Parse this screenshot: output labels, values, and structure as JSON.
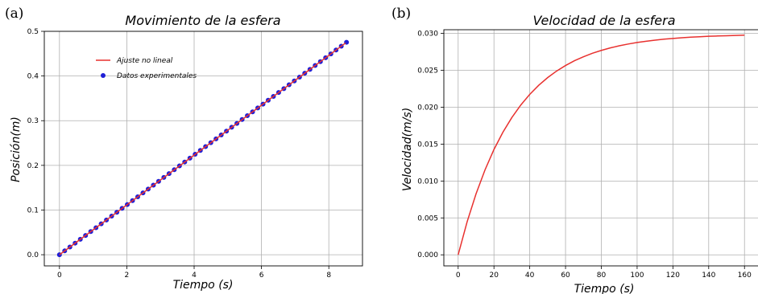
{
  "panels": [
    {
      "panel_letter": "(a)",
      "legend": {
        "fit_label": "Ajuste no lineal",
        "data_label": "Datos experimentales"
      }
    },
    {
      "panel_letter": "(b)"
    }
  ],
  "colors": {
    "fit_line": "#e8312f",
    "data_points": "#1f1fd6",
    "grid": "#b0b0b0"
  },
  "chart_data": [
    {
      "type": "scatter",
      "title": "Movimiento de la esfera",
      "xlabel": "Tiempo (s)",
      "ylabel": "Posición(m)",
      "xlim": [
        -0.45,
        9.0
      ],
      "ylim": [
        -0.025,
        0.5
      ],
      "xticks": [
        0,
        2,
        4,
        6,
        8
      ],
      "yticks": [
        0.0,
        0.1,
        0.2,
        0.3,
        0.4,
        0.5
      ],
      "xtick_labels": [
        "0",
        "2",
        "4",
        "6",
        "8"
      ],
      "ytick_labels": [
        "0.0",
        "0.1",
        "0.2",
        "0.3",
        "0.4",
        "0.5"
      ],
      "grid": true,
      "legend_position": "upper-left",
      "series": [
        {
          "name": "Ajuste no lineal",
          "kind": "line",
          "x": [
            0,
            8.5
          ],
          "y": [
            0.0,
            0.474
          ]
        },
        {
          "name": "Datos experimentales",
          "kind": "scatter",
          "x": [
            0.0,
            0.155,
            0.31,
            0.465,
            0.62,
            0.775,
            0.93,
            1.085,
            1.24,
            1.395,
            1.55,
            1.705,
            1.86,
            2.015,
            2.17,
            2.325,
            2.48,
            2.635,
            2.79,
            2.945,
            3.1,
            3.255,
            3.41,
            3.565,
            3.72,
            3.875,
            4.03,
            4.185,
            4.34,
            4.495,
            4.65,
            4.805,
            4.96,
            5.115,
            5.27,
            5.425,
            5.58,
            5.735,
            5.89,
            6.045,
            6.2,
            6.355,
            6.51,
            6.665,
            6.82,
            6.975,
            7.13,
            7.285,
            7.44,
            7.595,
            7.75,
            7.905,
            8.06,
            8.215,
            8.37,
            8.525
          ],
          "y": [
            0.0,
            0.0086,
            0.0173,
            0.0259,
            0.0346,
            0.0432,
            0.0519,
            0.0605,
            0.0692,
            0.0778,
            0.0864,
            0.0951,
            0.1037,
            0.1124,
            0.121,
            0.1297,
            0.1383,
            0.147,
            0.1556,
            0.1642,
            0.1729,
            0.1815,
            0.1902,
            0.1988,
            0.2075,
            0.2161,
            0.2248,
            0.2334,
            0.242,
            0.2507,
            0.2593,
            0.268,
            0.2766,
            0.2853,
            0.2939,
            0.3026,
            0.3112,
            0.3198,
            0.3285,
            0.3371,
            0.3458,
            0.3544,
            0.3631,
            0.3717,
            0.3804,
            0.389,
            0.3976,
            0.4063,
            0.4149,
            0.4236,
            0.4322,
            0.4409,
            0.4495,
            0.4582,
            0.4668,
            0.4754
          ]
        }
      ]
    },
    {
      "type": "line",
      "title": "Velocidad de la esfera",
      "xlabel": "Tiempo (s)",
      "ylabel": "Velocidad(m/s)",
      "xlim": [
        -8,
        168
      ],
      "ylim": [
        -0.0015,
        0.0305
      ],
      "xticks": [
        0,
        20,
        40,
        60,
        80,
        100,
        120,
        140,
        160
      ],
      "yticks": [
        0.0,
        0.005,
        0.01,
        0.015,
        0.02,
        0.025,
        0.03
      ],
      "xtick_labels": [
        "0",
        "20",
        "40",
        "60",
        "80",
        "100",
        "120",
        "140",
        "160"
      ],
      "ytick_labels": [
        "0.000",
        "0.005",
        "0.010",
        "0.015",
        "0.020",
        "0.025",
        "0.030"
      ],
      "grid": true,
      "series": [
        {
          "kind": "line",
          "x": [
            0,
            5,
            10,
            15,
            20,
            25,
            30,
            35,
            40,
            45,
            50,
            55,
            60,
            65,
            70,
            75,
            80,
            85,
            90,
            95,
            100,
            105,
            110,
            115,
            120,
            125,
            130,
            135,
            140,
            145,
            150,
            155,
            160
          ],
          "y": [
            0.0,
            0.00447,
            0.00827,
            0.01151,
            0.01427,
            0.01661,
            0.0186,
            0.0203,
            0.02174,
            0.02297,
            0.02401,
            0.0249,
            0.02565,
            0.0263,
            0.02684,
            0.02731,
            0.0277,
            0.02804,
            0.02832,
            0.02856,
            0.02877,
            0.02894,
            0.02909,
            0.02922,
            0.02932,
            0.02941,
            0.02949,
            0.02955,
            0.02961,
            0.02965,
            0.02969,
            0.02973,
            0.02976
          ]
        }
      ]
    }
  ]
}
